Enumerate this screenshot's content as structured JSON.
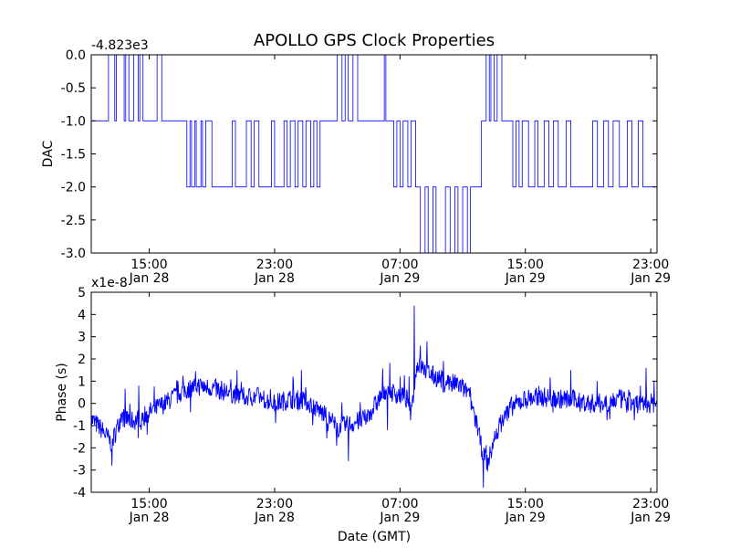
{
  "figure_title": "APOLLO GPS Clock Properties",
  "x_axis_label": "Date (GMT)",
  "chart_data": [
    {
      "type": "line",
      "title": "APOLLO GPS Clock Properties",
      "ylabel": "DAC",
      "offset_label": "-4.823e3",
      "ylim": [
        -3.0,
        0.0
      ],
      "y_ticks": [
        0.0,
        -0.5,
        -1.0,
        -1.5,
        -2.0,
        -2.5,
        -3.0
      ],
      "y_tick_labels": [
        "0.0",
        "-0.5",
        "-1.0",
        "-1.5",
        "-2.0",
        "-2.5",
        "-3.0"
      ],
      "xlim_hours": [
        11.3,
        47.4
      ],
      "x_ticks_hours": [
        15,
        23,
        31,
        39,
        47
      ],
      "x_tick_labels": [
        [
          "15:00",
          "Jan 28"
        ],
        [
          "23:00",
          "Jan 28"
        ],
        [
          "07:00",
          "Jan 29"
        ],
        [
          "15:00",
          "Jan 29"
        ],
        [
          "23:00",
          "Jan 29"
        ]
      ],
      "line_color": "#0000ff",
      "series": [
        {
          "name": "DAC",
          "points": [
            [
              11.3,
              -1
            ],
            [
              12.4,
              -1
            ],
            [
              12.4,
              0
            ],
            [
              12.8,
              0
            ],
            [
              12.8,
              -1
            ],
            [
              12.9,
              -1
            ],
            [
              12.9,
              0
            ],
            [
              13.4,
              0
            ],
            [
              13.4,
              -1
            ],
            [
              13.5,
              -1
            ],
            [
              13.5,
              0
            ],
            [
              13.7,
              0
            ],
            [
              13.7,
              -1
            ],
            [
              14.0,
              -1
            ],
            [
              14.0,
              0
            ],
            [
              14.3,
              0
            ],
            [
              14.3,
              -1
            ],
            [
              14.4,
              -1
            ],
            [
              14.4,
              0
            ],
            [
              14.6,
              0
            ],
            [
              14.6,
              -1
            ],
            [
              14.9,
              -1
            ],
            [
              14.9,
              -1
            ],
            [
              15.5,
              -1
            ],
            [
              15.5,
              0
            ],
            [
              15.8,
              0
            ],
            [
              15.8,
              -1
            ],
            [
              17.4,
              -1
            ],
            [
              17.4,
              -2
            ],
            [
              17.6,
              -2
            ],
            [
              17.6,
              -1
            ],
            [
              17.7,
              -1
            ],
            [
              17.7,
              -2
            ],
            [
              17.9,
              -2
            ],
            [
              17.9,
              -1
            ],
            [
              18.0,
              -1
            ],
            [
              18.0,
              -2
            ],
            [
              18.3,
              -2
            ],
            [
              18.3,
              -1
            ],
            [
              18.4,
              -1
            ],
            [
              18.4,
              -2
            ],
            [
              18.6,
              -2
            ],
            [
              18.6,
              -1
            ],
            [
              19.0,
              -1
            ],
            [
              19.0,
              -2
            ],
            [
              20.3,
              -2
            ],
            [
              20.3,
              -1
            ],
            [
              20.5,
              -1
            ],
            [
              20.5,
              -2
            ],
            [
              21.2,
              -2
            ],
            [
              21.2,
              -1
            ],
            [
              21.5,
              -1
            ],
            [
              21.5,
              -2
            ],
            [
              21.7,
              -2
            ],
            [
              21.7,
              -1
            ],
            [
              22.0,
              -1
            ],
            [
              22.0,
              -2
            ],
            [
              22.8,
              -2
            ],
            [
              22.8,
              -1
            ],
            [
              23.0,
              -1
            ],
            [
              23.0,
              -2
            ],
            [
              23.6,
              -2
            ],
            [
              23.6,
              -1
            ],
            [
              23.8,
              -1
            ],
            [
              23.8,
              -2
            ],
            [
              24.0,
              -2
            ],
            [
              24.0,
              -1
            ],
            [
              24.3,
              -1
            ],
            [
              24.3,
              -2
            ],
            [
              24.5,
              -2
            ],
            [
              24.5,
              -1
            ],
            [
              24.8,
              -1
            ],
            [
              24.8,
              -2
            ],
            [
              25.0,
              -2
            ],
            [
              25.0,
              -1
            ],
            [
              25.3,
              -1
            ],
            [
              25.3,
              -2
            ],
            [
              25.5,
              -2
            ],
            [
              25.5,
              -1
            ],
            [
              25.7,
              -1
            ],
            [
              25.7,
              -2
            ],
            [
              25.9,
              -2
            ],
            [
              25.9,
              -1
            ],
            [
              27.0,
              -1
            ],
            [
              27.0,
              0
            ],
            [
              27.3,
              0
            ],
            [
              27.3,
              -1
            ],
            [
              27.5,
              -1
            ],
            [
              27.5,
              0
            ],
            [
              27.7,
              0
            ],
            [
              27.7,
              -1
            ],
            [
              28.0,
              -1
            ],
            [
              28.0,
              0
            ],
            [
              28.3,
              0
            ],
            [
              28.3,
              -1
            ],
            [
              30.0,
              -1
            ],
            [
              30.0,
              0
            ],
            [
              30.1,
              0
            ],
            [
              30.1,
              -1
            ],
            [
              30.6,
              -1
            ],
            [
              30.6,
              -2
            ],
            [
              30.8,
              -2
            ],
            [
              30.8,
              -1
            ],
            [
              31.0,
              -1
            ],
            [
              31.0,
              -2
            ],
            [
              31.2,
              -2
            ],
            [
              31.2,
              -1
            ],
            [
              31.5,
              -1
            ],
            [
              31.5,
              -2
            ],
            [
              31.7,
              -2
            ],
            [
              31.7,
              -1
            ],
            [
              32.0,
              -1
            ],
            [
              32.0,
              -2
            ],
            [
              32.3,
              -2
            ],
            [
              32.3,
              -3
            ],
            [
              32.6,
              -3
            ],
            [
              32.6,
              -2
            ],
            [
              32.8,
              -2
            ],
            [
              32.8,
              -3
            ],
            [
              33.1,
              -3
            ],
            [
              33.1,
              -2
            ],
            [
              33.3,
              -2
            ],
            [
              33.3,
              -3
            ],
            [
              33.9,
              -3
            ],
            [
              33.9,
              -2
            ],
            [
              34.2,
              -2
            ],
            [
              34.2,
              -3
            ],
            [
              34.5,
              -3
            ],
            [
              34.5,
              -2
            ],
            [
              34.7,
              -2
            ],
            [
              34.7,
              -3
            ],
            [
              35.0,
              -3
            ],
            [
              35.0,
              -2
            ],
            [
              35.3,
              -2
            ],
            [
              35.3,
              -3
            ],
            [
              35.5,
              -3
            ],
            [
              35.5,
              -2
            ],
            [
              36.2,
              -2
            ],
            [
              36.2,
              -1
            ],
            [
              36.5,
              -1
            ],
            [
              36.5,
              0
            ],
            [
              36.7,
              0
            ],
            [
              36.7,
              -1
            ],
            [
              36.8,
              -1
            ],
            [
              36.8,
              0
            ],
            [
              37.0,
              0
            ],
            [
              37.0,
              -1
            ],
            [
              37.2,
              -1
            ],
            [
              37.2,
              0
            ],
            [
              37.5,
              0
            ],
            [
              37.5,
              -1
            ],
            [
              38.2,
              -1
            ],
            [
              38.2,
              -2
            ],
            [
              38.4,
              -2
            ],
            [
              38.4,
              -1
            ],
            [
              38.6,
              -1
            ],
            [
              38.6,
              -2
            ],
            [
              38.8,
              -2
            ],
            [
              38.8,
              -1
            ],
            [
              39.2,
              -1
            ],
            [
              39.2,
              -2
            ],
            [
              39.6,
              -2
            ],
            [
              39.6,
              -1
            ],
            [
              39.8,
              -1
            ],
            [
              39.8,
              -2
            ],
            [
              40.2,
              -2
            ],
            [
              40.2,
              -1
            ],
            [
              40.5,
              -1
            ],
            [
              40.5,
              -2
            ],
            [
              40.8,
              -2
            ],
            [
              40.8,
              -1
            ],
            [
              41.1,
              -1
            ],
            [
              41.1,
              -2
            ],
            [
              41.6,
              -2
            ],
            [
              41.6,
              -1
            ],
            [
              41.9,
              -1
            ],
            [
              41.9,
              -2
            ],
            [
              43.3,
              -2
            ],
            [
              43.3,
              -1
            ],
            [
              43.6,
              -1
            ],
            [
              43.6,
              -2
            ],
            [
              44.0,
              -2
            ],
            [
              44.0,
              -1
            ],
            [
              44.3,
              -1
            ],
            [
              44.3,
              -2
            ],
            [
              44.6,
              -2
            ],
            [
              44.6,
              -1
            ],
            [
              45.0,
              -1
            ],
            [
              45.0,
              -2
            ],
            [
              45.5,
              -2
            ],
            [
              45.5,
              -1
            ],
            [
              45.8,
              -1
            ],
            [
              45.8,
              -2
            ],
            [
              46.2,
              -2
            ],
            [
              46.2,
              -1
            ],
            [
              46.5,
              -1
            ],
            [
              46.5,
              -2
            ],
            [
              47.4,
              -2
            ]
          ]
        }
      ]
    },
    {
      "type": "line",
      "ylabel": "Phase (s)",
      "scale_label": "x1e-8",
      "ylim": [
        -4,
        5
      ],
      "y_ticks": [
        5,
        4,
        3,
        2,
        1,
        0,
        -1,
        -2,
        -3,
        -4
      ],
      "y_tick_labels": [
        "5",
        "4",
        "3",
        "2",
        "1",
        "0",
        "-1",
        "-2",
        "-3",
        "-4"
      ],
      "xlim_hours": [
        11.3,
        47.4
      ],
      "x_ticks_hours": [
        15,
        23,
        31,
        39,
        47
      ],
      "x_tick_labels": [
        [
          "15:00",
          "Jan 28"
        ],
        [
          "23:00",
          "Jan 28"
        ],
        [
          "07:00",
          "Jan 29"
        ],
        [
          "15:00",
          "Jan 29"
        ],
        [
          "23:00",
          "Jan 29"
        ]
      ],
      "xlabel": "Date (GMT)",
      "line_color": "#0000ff",
      "series": [
        {
          "name": "Phase",
          "trend_points": [
            [
              11.3,
              -0.7
            ],
            [
              12.0,
              -1.2
            ],
            [
              12.6,
              -1.8
            ],
            [
              13.2,
              -0.6
            ],
            [
              14.0,
              -0.8
            ],
            [
              15.0,
              -0.4
            ],
            [
              16.0,
              0.0
            ],
            [
              17.0,
              0.5
            ],
            [
              18.0,
              0.8
            ],
            [
              19.0,
              0.7
            ],
            [
              20.0,
              0.5
            ],
            [
              21.0,
              0.3
            ],
            [
              22.0,
              0.3
            ],
            [
              23.0,
              0.0
            ],
            [
              24.0,
              0.2
            ],
            [
              25.0,
              0.1
            ],
            [
              26.0,
              -0.4
            ],
            [
              27.0,
              -1.1
            ],
            [
              28.0,
              -0.9
            ],
            [
              28.8,
              -0.7
            ],
            [
              29.5,
              0.0
            ],
            [
              30.0,
              0.6
            ],
            [
              30.5,
              0.5
            ],
            [
              31.2,
              0.3
            ],
            [
              31.8,
              0.0
            ],
            [
              32.1,
              1.8
            ],
            [
              32.6,
              1.5
            ],
            [
              33.2,
              1.2
            ],
            [
              34.0,
              1.0
            ],
            [
              34.8,
              0.8
            ],
            [
              35.3,
              0.5
            ],
            [
              35.8,
              -0.5
            ],
            [
              36.2,
              -2.0
            ],
            [
              36.6,
              -2.7
            ],
            [
              37.2,
              -1.2
            ],
            [
              38.0,
              -0.2
            ],
            [
              39.0,
              0.2
            ],
            [
              40.0,
              0.3
            ],
            [
              41.0,
              0.2
            ],
            [
              42.0,
              0.2
            ],
            [
              43.0,
              0.0
            ],
            [
              44.0,
              0.0
            ],
            [
              45.0,
              0.2
            ],
            [
              46.0,
              0.0
            ],
            [
              47.4,
              0.0
            ]
          ],
          "noise_amplitude": 0.45,
          "sample_step_hours": 0.03,
          "spikes": [
            [
              12.6,
              -2.8
            ],
            [
              14.3,
              0.8
            ],
            [
              20.6,
              1.5
            ],
            [
              24.7,
              1.5
            ],
            [
              27.7,
              -2.6
            ],
            [
              30.2,
              -1.2
            ],
            [
              31.9,
              4.4
            ],
            [
              32.3,
              2.6
            ],
            [
              36.3,
              -3.8
            ],
            [
              41.9,
              1.5
            ],
            [
              46.7,
              1.6
            ],
            [
              47.2,
              1.0
            ]
          ]
        }
      ]
    }
  ]
}
